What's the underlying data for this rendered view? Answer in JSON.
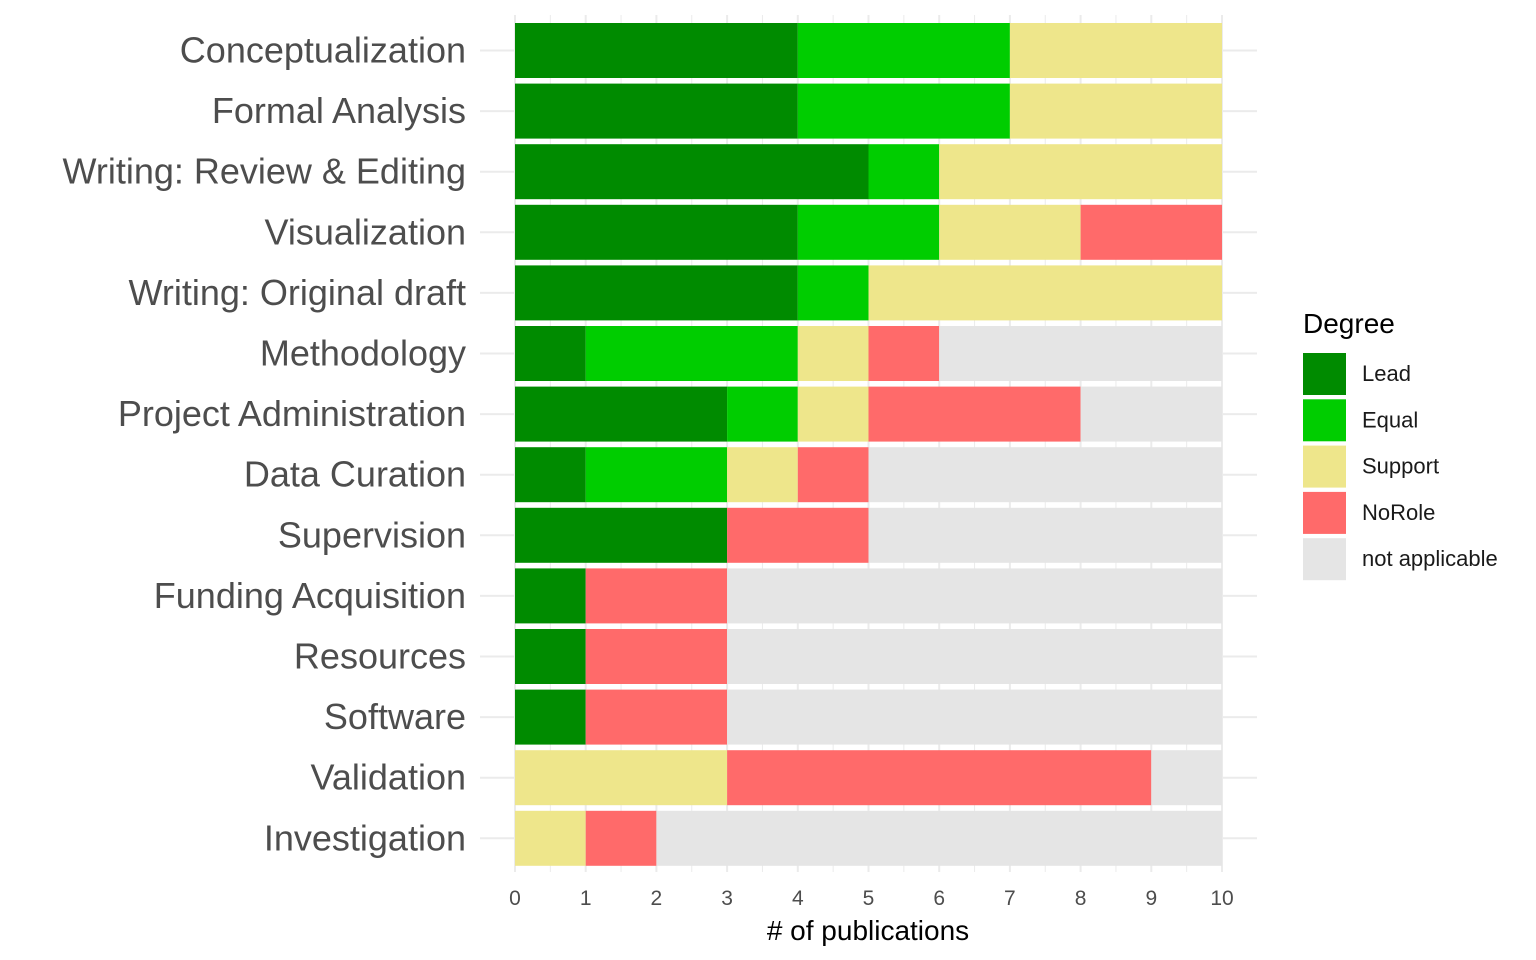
{
  "chart_data": {
    "type": "bar",
    "orientation": "horizontal",
    "stacked": true,
    "categories": [
      "Conceptualization",
      "Formal Analysis",
      "Writing: Review & Editing",
      "Visualization",
      "Writing: Original draft",
      "Methodology",
      "Project Administration",
      "Data Curation",
      "Supervision",
      "Funding Acquisition",
      "Resources",
      "Software",
      "Validation",
      "Investigation"
    ],
    "series": [
      {
        "name": "Lead",
        "color": "#008b00",
        "values": [
          4,
          4,
          5,
          4,
          4,
          1,
          3,
          1,
          3,
          1,
          1,
          1,
          0,
          0
        ]
      },
      {
        "name": "Equal",
        "color": "#00cd00",
        "values": [
          3,
          3,
          1,
          2,
          1,
          3,
          1,
          2,
          0,
          0,
          0,
          0,
          0,
          0
        ]
      },
      {
        "name": "Support",
        "color": "#eee68b",
        "values": [
          3,
          3,
          4,
          2,
          5,
          1,
          1,
          1,
          0,
          0,
          0,
          0,
          3,
          1
        ]
      },
      {
        "name": "NoRole",
        "color": "#ff6a6a",
        "values": [
          0,
          0,
          0,
          2,
          0,
          1,
          3,
          1,
          2,
          2,
          2,
          2,
          6,
          1
        ]
      },
      {
        "name": "not applicable",
        "color": "#e5e5e5",
        "values": [
          0,
          0,
          0,
          0,
          0,
          4,
          2,
          5,
          5,
          7,
          7,
          7,
          1,
          8
        ]
      }
    ],
    "xlabel": "# of publications",
    "ylabel": "",
    "xlim": [
      0,
      10
    ],
    "xticks": [
      "0",
      "1",
      "2",
      "3",
      "4",
      "5",
      "6",
      "7",
      "8",
      "9",
      "10"
    ],
    "grid": true,
    "legend": {
      "title": "Degree",
      "placement": "right"
    }
  }
}
